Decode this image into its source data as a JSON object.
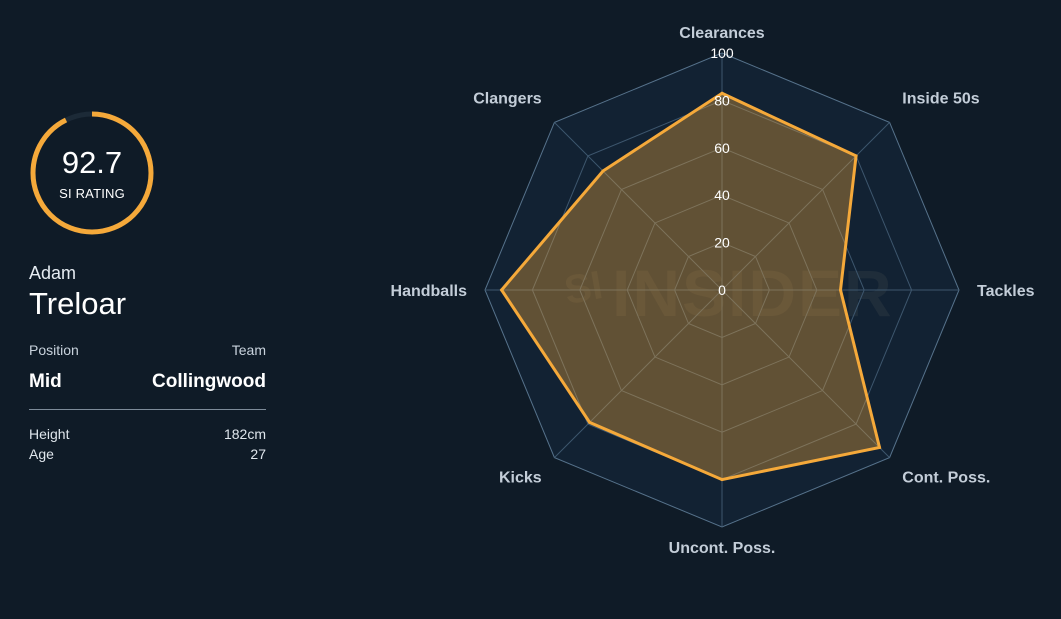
{
  "player": {
    "rating": "92.7",
    "rating_label": "SI RATING",
    "first_name": "Adam",
    "last_name": "Treloar",
    "position_label": "Position",
    "team_label": "Team",
    "position": "Mid",
    "team": "Collingwood",
    "height_label": "Height",
    "height": "182cm",
    "age_label": "Age",
    "age": "27"
  },
  "colors": {
    "accent": "#f5a93a",
    "background": "#0f1b27",
    "grid": "#4e6a82"
  },
  "watermark": {
    "text_small": "SI",
    "text_large": "INSIDER"
  },
  "chart_data": {
    "type": "radar",
    "axes": [
      "Clearances",
      "Inside 50s",
      "Tackles",
      "Cont. Poss.",
      "Uncont. Poss.",
      "Kicks",
      "Handballs",
      "Clangers"
    ],
    "values": [
      83,
      80,
      50,
      94,
      80,
      79,
      93,
      71
    ],
    "rlim": [
      0,
      100
    ],
    "ticks": [
      0,
      20,
      40,
      60,
      80,
      100
    ],
    "grid": true
  }
}
